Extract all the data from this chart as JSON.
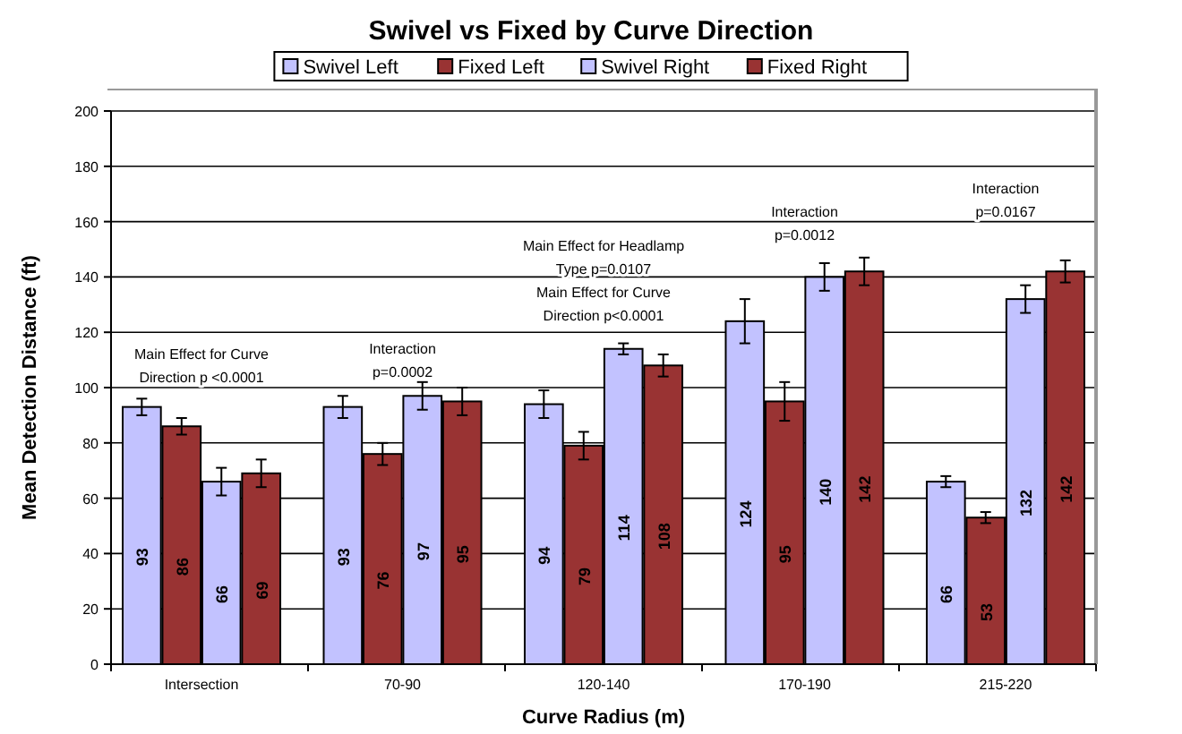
{
  "chart_data": {
    "type": "bar",
    "title": "Swivel vs Fixed by Curve Direction",
    "xlabel": "Curve Radius (m)",
    "ylabel": "Mean Detection Distance (ft)",
    "categories": [
      "Intersection",
      "70-90",
      "120-140",
      "170-190",
      "215-220"
    ],
    "series": [
      {
        "name": "Swivel Left",
        "color": "#c2c2ff",
        "values": [
          93,
          93,
          94,
          124,
          66
        ],
        "errors": [
          3,
          4,
          5,
          8,
          2
        ]
      },
      {
        "name": "Fixed Left",
        "color": "#993333",
        "values": [
          86,
          76,
          79,
          95,
          53
        ],
        "errors": [
          3,
          4,
          5,
          7,
          2
        ]
      },
      {
        "name": "Swivel Right",
        "color": "#c2c2ff",
        "values": [
          66,
          97,
          114,
          140,
          132
        ],
        "errors": [
          5,
          5,
          2,
          5,
          5
        ]
      },
      {
        "name": "Fixed Right",
        "color": "#993333",
        "values": [
          69,
          95,
          108,
          142,
          142
        ],
        "errors": [
          5,
          5,
          4,
          5,
          4
        ]
      }
    ],
    "ylim": [
      0,
      200
    ],
    "yticks": [
      0,
      20,
      40,
      60,
      80,
      100,
      120,
      140,
      160,
      180,
      200
    ],
    "grid": "y",
    "legend": "top",
    "data_labels": true,
    "annotations": [
      "Main Effect for Curve\nDirection p <0.0001",
      "Interaction\np=0.0002",
      "Main Effect for Headlamp\nType p=0.0107",
      "Main Effect for Curve\nDirection p<0.0001",
      "Interaction\np=0.0012",
      "Interaction\np=0.0167"
    ]
  }
}
